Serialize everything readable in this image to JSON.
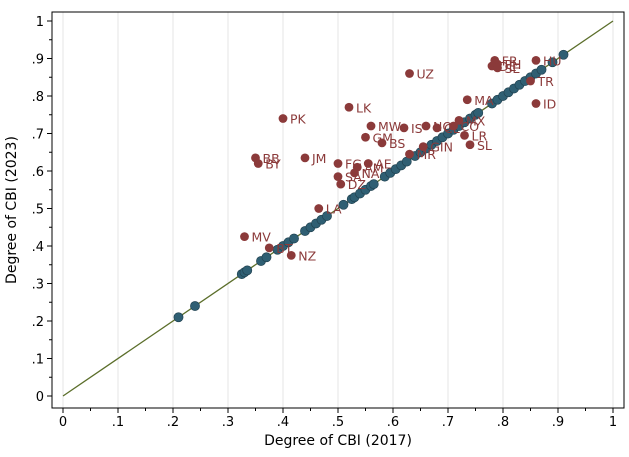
{
  "chart_data": {
    "type": "scatter",
    "xlabel": "Degree of CBI (2017)",
    "ylabel": "Degree of CBI (2023)",
    "xlim": [
      0,
      1
    ],
    "ylim": [
      0,
      1
    ],
    "x_ticks": [
      0,
      0.1,
      0.2,
      0.3,
      0.4,
      0.5,
      0.6,
      0.7,
      0.8,
      0.9,
      1
    ],
    "x_tick_labels": [
      "0",
      ".1",
      ".2",
      ".3",
      ".4",
      ".5",
      ".6",
      ".7",
      ".8",
      ".9",
      "1"
    ],
    "y_ticks": [
      0,
      0.1,
      0.2,
      0.3,
      0.4,
      0.5,
      0.6,
      0.7,
      0.8,
      0.9,
      1
    ],
    "y_tick_labels": [
      "0",
      ".1",
      ".2",
      ".3",
      ".4",
      ".5",
      ".6",
      ".7",
      ".8",
      ".9",
      "1"
    ],
    "grid": "vertical",
    "reference_line": "45-degree",
    "colors": {
      "unchanged": "#2f5f73",
      "changed": "#8b3a3a",
      "reference_line": "#5b6e2a"
    },
    "unchanged_points": [
      [
        0.21,
        0.21
      ],
      [
        0.24,
        0.24
      ],
      [
        0.325,
        0.325
      ],
      [
        0.33,
        0.33
      ],
      [
        0.335,
        0.335
      ],
      [
        0.36,
        0.36
      ],
      [
        0.37,
        0.37
      ],
      [
        0.39,
        0.39
      ],
      [
        0.4,
        0.4
      ],
      [
        0.41,
        0.41
      ],
      [
        0.42,
        0.42
      ],
      [
        0.44,
        0.44
      ],
      [
        0.45,
        0.45
      ],
      [
        0.46,
        0.46
      ],
      [
        0.47,
        0.47
      ],
      [
        0.48,
        0.48
      ],
      [
        0.51,
        0.51
      ],
      [
        0.525,
        0.525
      ],
      [
        0.53,
        0.53
      ],
      [
        0.54,
        0.54
      ],
      [
        0.55,
        0.55
      ],
      [
        0.56,
        0.56
      ],
      [
        0.565,
        0.565
      ],
      [
        0.585,
        0.585
      ],
      [
        0.595,
        0.595
      ],
      [
        0.605,
        0.605
      ],
      [
        0.615,
        0.615
      ],
      [
        0.625,
        0.625
      ],
      [
        0.64,
        0.64
      ],
      [
        0.65,
        0.65
      ],
      [
        0.66,
        0.66
      ],
      [
        0.67,
        0.67
      ],
      [
        0.68,
        0.68
      ],
      [
        0.69,
        0.69
      ],
      [
        0.7,
        0.7
      ],
      [
        0.71,
        0.71
      ],
      [
        0.72,
        0.72
      ],
      [
        0.73,
        0.73
      ],
      [
        0.74,
        0.74
      ],
      [
        0.75,
        0.75
      ],
      [
        0.755,
        0.755
      ],
      [
        0.78,
        0.78
      ],
      [
        0.79,
        0.79
      ],
      [
        0.8,
        0.8
      ],
      [
        0.81,
        0.81
      ],
      [
        0.82,
        0.82
      ],
      [
        0.83,
        0.83
      ],
      [
        0.84,
        0.84
      ],
      [
        0.85,
        0.85
      ],
      [
        0.86,
        0.86
      ],
      [
        0.87,
        0.87
      ],
      [
        0.89,
        0.89
      ],
      [
        0.91,
        0.91
      ]
    ],
    "changed_points": [
      {
        "label": "UZ",
        "x": 0.63,
        "y": 0.86
      },
      {
        "label": "PK",
        "x": 0.4,
        "y": 0.74
      },
      {
        "label": "LK",
        "x": 0.52,
        "y": 0.77
      },
      {
        "label": "MA",
        "x": 0.735,
        "y": 0.79
      },
      {
        "label": "ID",
        "x": 0.86,
        "y": 0.78
      },
      {
        "label": "TR",
        "x": 0.85,
        "y": 0.84
      },
      {
        "label": "HU",
        "x": 0.86,
        "y": 0.895
      },
      {
        "label": "FR",
        "x": 0.785,
        "y": 0.895
      },
      {
        "label": "PH",
        "x": 0.79,
        "y": 0.885
      },
      {
        "label": "DE",
        "x": 0.78,
        "y": 0.88
      },
      {
        "label": "SE",
        "x": 0.79,
        "y": 0.875
      },
      {
        "label": "MW",
        "x": 0.56,
        "y": 0.72
      },
      {
        "label": "IS",
        "x": 0.62,
        "y": 0.715
      },
      {
        "label": "GM",
        "x": 0.55,
        "y": 0.69
      },
      {
        "label": "BS",
        "x": 0.58,
        "y": 0.675
      },
      {
        "label": "NO",
        "x": 0.66,
        "y": 0.72
      },
      {
        "label": "CL",
        "x": 0.68,
        "y": 0.715
      },
      {
        "label": "CO",
        "x": 0.71,
        "y": 0.72
      },
      {
        "label": "MX",
        "x": 0.72,
        "y": 0.735
      },
      {
        "label": "LR",
        "x": 0.73,
        "y": 0.695
      },
      {
        "label": "SL",
        "x": 0.74,
        "y": 0.67
      },
      {
        "label": "MR",
        "x": 0.63,
        "y": 0.645
      },
      {
        "label": "GIN",
        "x": 0.655,
        "y": 0.665
      },
      {
        "label": "JM",
        "x": 0.44,
        "y": 0.635
      },
      {
        "label": "BB",
        "x": 0.35,
        "y": 0.635
      },
      {
        "label": "BY",
        "x": 0.355,
        "y": 0.62
      },
      {
        "label": "FG",
        "x": 0.5,
        "y": 0.62
      },
      {
        "label": "AE",
        "x": 0.555,
        "y": 0.62
      },
      {
        "label": "AM",
        "x": 0.535,
        "y": 0.61
      },
      {
        "label": "NA",
        "x": 0.53,
        "y": 0.595
      },
      {
        "label": "SA",
        "x": 0.5,
        "y": 0.585
      },
      {
        "label": "DZ",
        "x": 0.505,
        "y": 0.565
      },
      {
        "label": "LA",
        "x": 0.465,
        "y": 0.5
      },
      {
        "label": "MV",
        "x": 0.33,
        "y": 0.425
      },
      {
        "label": "BT",
        "x": 0.375,
        "y": 0.395
      },
      {
        "label": "NZ",
        "x": 0.415,
        "y": 0.375
      }
    ]
  }
}
